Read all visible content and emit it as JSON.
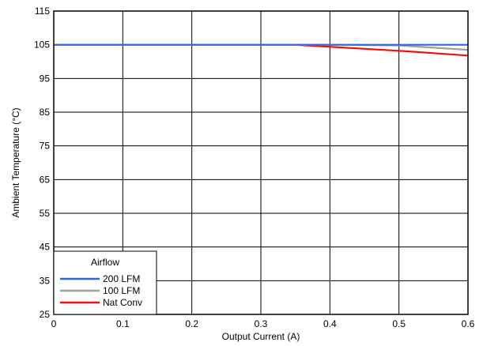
{
  "chart_data": {
    "type": "line",
    "title": "",
    "xlabel": "Output Current (A)",
    "ylabel": "Ambient Temperature (°C)",
    "xlim": [
      0,
      0.6
    ],
    "ylim": [
      25,
      115
    ],
    "xticks": [
      0,
      0.1,
      0.2,
      0.3,
      0.4,
      0.5,
      0.6
    ],
    "xtick_labels": [
      "0",
      "0.1",
      "0.2",
      "0.3",
      "0.4",
      "0.5",
      "0.6"
    ],
    "yticks": [
      25,
      35,
      45,
      55,
      65,
      75,
      85,
      95,
      105,
      115
    ],
    "ytick_labels": [
      "25",
      "35",
      "45",
      "55",
      "65",
      "75",
      "85",
      "95",
      "105",
      "115"
    ],
    "grid": true,
    "legend": {
      "title": "Airflow",
      "placement": "bottom-left"
    },
    "series": [
      {
        "name": "200 LFM",
        "color": "#3366dd",
        "x": [
          0,
          0.35,
          0.6
        ],
        "y": [
          105,
          105,
          105
        ]
      },
      {
        "name": "100 LFM",
        "color": "#a0a0a0",
        "x": [
          0,
          0.4,
          0.5,
          0.6
        ],
        "y": [
          105,
          105,
          104.8,
          103.5
        ]
      },
      {
        "name": "Nat Conv",
        "color": "#ee1111",
        "x": [
          0,
          0.35,
          0.5,
          0.6
        ],
        "y": [
          105,
          105,
          103.2,
          101.8
        ]
      }
    ]
  }
}
